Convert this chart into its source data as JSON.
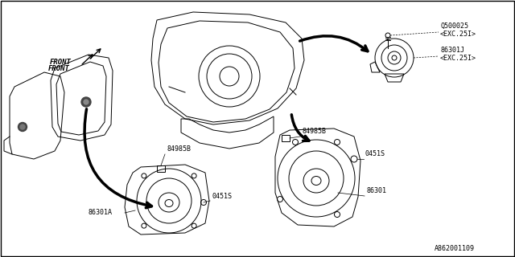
{
  "bg_color": "#ffffff",
  "line_color": "#000000",
  "text_color": "#000000",
  "footer_text": "A862001109",
  "labels": {
    "front": "FRONT",
    "q500025": "Q500025",
    "exc25i_1": "<EXC.25I>",
    "b86301j": "86301J",
    "exc25i_2": "<EXC.25I>",
    "b84985b_left": "84985B",
    "b84985b_right": "84985B",
    "b0451s_left": "0451S",
    "b0451s_right": "0451S",
    "b86301": "86301",
    "b86301a": "86301A"
  },
  "fig_width": 6.4,
  "fig_height": 3.2,
  "dpi": 100
}
